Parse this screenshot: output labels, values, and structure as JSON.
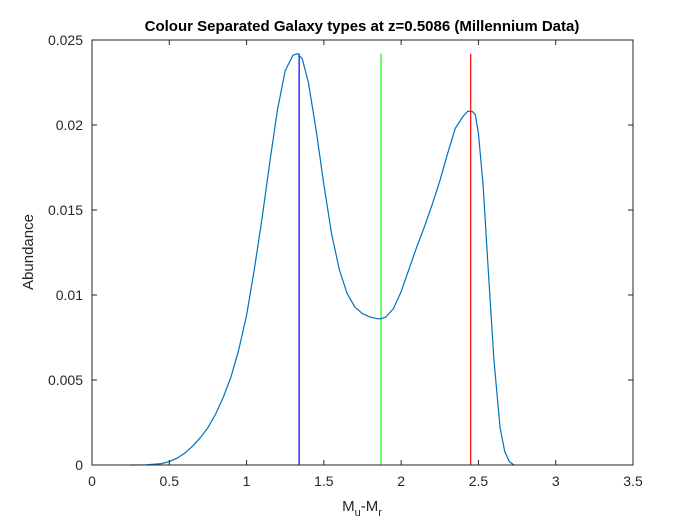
{
  "chart_data": {
    "type": "line",
    "title": "Colour Separated Galaxy types at z=0.5086 (Millennium Data)",
    "xlabel": {
      "main": "M",
      "sub1": "u",
      "mid": "-M",
      "sub2": "r"
    },
    "ylabel": "Abundance",
    "xlim": [
      0,
      3.5
    ],
    "ylim": [
      0,
      0.025
    ],
    "x_ticks": [
      0,
      0.5,
      1,
      1.5,
      2,
      2.5,
      3,
      3.5
    ],
    "x_tick_labels": [
      "0",
      "0.5",
      "1",
      "1.5",
      "2",
      "2.5",
      "3",
      "3.5"
    ],
    "y_ticks": [
      0,
      0.005,
      0.01,
      0.015,
      0.02,
      0.025
    ],
    "y_tick_labels": [
      "0",
      "0.005",
      "0.01",
      "0.015",
      "0.02",
      "0.025"
    ],
    "grid": false,
    "series": [
      {
        "color": "#0072bd",
        "x": [
          0.25,
          0.35,
          0.45,
          0.5,
          0.55,
          0.6,
          0.65,
          0.7,
          0.75,
          0.8,
          0.85,
          0.9,
          0.95,
          1.0,
          1.05,
          1.1,
          1.15,
          1.2,
          1.25,
          1.3,
          1.33,
          1.36,
          1.4,
          1.45,
          1.5,
          1.55,
          1.6,
          1.65,
          1.7,
          1.75,
          1.8,
          1.85,
          1.87,
          1.9,
          1.95,
          2.0,
          2.05,
          2.1,
          2.15,
          2.2,
          2.25,
          2.3,
          2.35,
          2.4,
          2.43,
          2.46,
          2.48,
          2.5,
          2.53,
          2.56,
          2.6,
          2.64,
          2.67,
          2.7,
          2.73
        ],
        "y": [
          0.0,
          1e-05,
          8e-05,
          0.0002,
          0.0004,
          0.0007,
          0.0011,
          0.0016,
          0.0022,
          0.003,
          0.004,
          0.0052,
          0.0068,
          0.0088,
          0.0115,
          0.0145,
          0.0178,
          0.0209,
          0.0232,
          0.0241,
          0.0242,
          0.0239,
          0.0225,
          0.0197,
          0.0165,
          0.0136,
          0.0115,
          0.0101,
          0.0093,
          0.0089,
          0.0087,
          0.0086,
          0.0086,
          0.0087,
          0.0092,
          0.0102,
          0.0115,
          0.0128,
          0.014,
          0.0153,
          0.0167,
          0.0183,
          0.0198,
          0.0205,
          0.0208,
          0.0208,
          0.0206,
          0.0195,
          0.0165,
          0.012,
          0.0062,
          0.0022,
          0.0008,
          0.0002,
          0.0
        ]
      }
    ],
    "vertical_lines": [
      {
        "x": 1.34,
        "y_top": 0.0242,
        "color": "#0000ff"
      },
      {
        "x": 1.87,
        "y_top": 0.0242,
        "color": "#00ff00"
      },
      {
        "x": 2.45,
        "y_top": 0.0242,
        "color": "#ff0000"
      }
    ],
    "axis_color": "#262626"
  }
}
